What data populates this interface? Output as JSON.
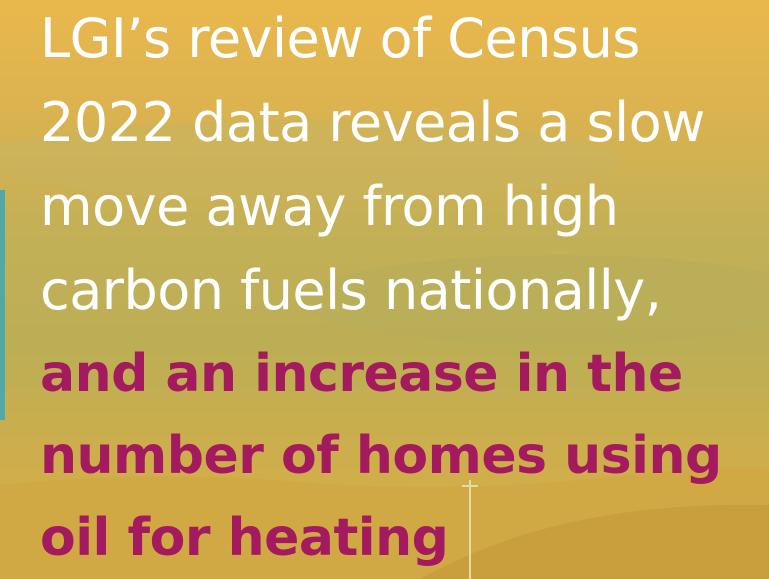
{
  "headline": {
    "intro_lines": [
      "LGI’s review of Census",
      "2022 data reveals a slow",
      "move away from high",
      "carbon fuels nationally,"
    ],
    "highlight_lines": [
      "and an increase in the",
      "number of homes using",
      "oil for heating"
    ]
  }
}
